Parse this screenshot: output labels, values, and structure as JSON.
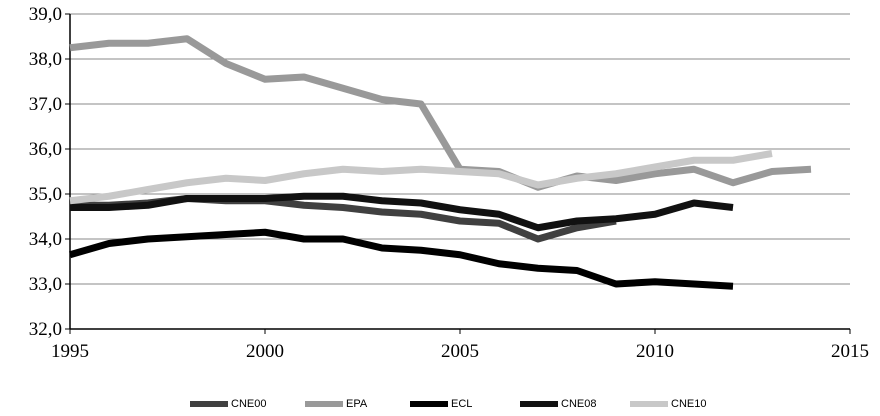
{
  "chart_data": {
    "type": "line",
    "xlim": [
      1995,
      2015
    ],
    "xticks": [
      1995,
      2000,
      2005,
      2010,
      2015
    ],
    "ylim": [
      32,
      39
    ],
    "yticks": [
      {
        "value": 32,
        "label": "32,0"
      },
      {
        "value": 33,
        "label": "33,0"
      },
      {
        "value": 34,
        "label": "34,0"
      },
      {
        "value": 35,
        "label": "35,0"
      },
      {
        "value": 36,
        "label": "36,0"
      },
      {
        "value": 37,
        "label": "37,0"
      },
      {
        "value": 38,
        "label": "38,0"
      },
      {
        "value": 39,
        "label": "39,0"
      }
    ],
    "grid": true,
    "legend": "bottom",
    "series": [
      {
        "name": "CNE00",
        "color": "#404040",
        "x": [
          1995,
          1996,
          1997,
          1998,
          1999,
          2000,
          2001,
          2002,
          2003,
          2004,
          2005,
          2006,
          2007,
          2008,
          2009
        ],
        "values": [
          34.75,
          34.75,
          34.8,
          34.9,
          34.85,
          34.85,
          34.75,
          34.7,
          34.6,
          34.55,
          34.4,
          34.35,
          34.0,
          34.25,
          34.4
        ]
      },
      {
        "name": "EPA",
        "color": "#999999",
        "x": [
          1995,
          1996,
          1997,
          1998,
          1999,
          2000,
          2001,
          2002,
          2003,
          2004,
          2005,
          2006,
          2007,
          2008,
          2009,
          2010,
          2011,
          2012,
          2013,
          2014
        ],
        "values": [
          38.25,
          38.35,
          38.35,
          38.45,
          37.9,
          37.55,
          37.6,
          37.35,
          37.1,
          37.0,
          35.55,
          35.5,
          35.15,
          35.4,
          35.3,
          35.45,
          35.55,
          35.25,
          35.5,
          35.55
        ]
      },
      {
        "name": "ECL",
        "color": "#000000",
        "x": [
          1995,
          1996,
          1997,
          1998,
          1999,
          2000,
          2001,
          2002,
          2003,
          2004,
          2005,
          2006,
          2007,
          2008,
          2009,
          2010,
          2011,
          2012
        ],
        "values": [
          33.65,
          33.9,
          34.0,
          34.05,
          34.1,
          34.15,
          34.0,
          34.0,
          33.8,
          33.75,
          33.65,
          33.45,
          33.35,
          33.3,
          33.0,
          33.05,
          33.0,
          32.95
        ]
      },
      {
        "name": "CNE08",
        "color": "#111111",
        "x": [
          1995,
          1996,
          1997,
          1998,
          1999,
          2000,
          2001,
          2002,
          2003,
          2004,
          2005,
          2006,
          2007,
          2008,
          2009,
          2010,
          2011,
          2012
        ],
        "values": [
          34.7,
          34.7,
          34.75,
          34.9,
          34.9,
          34.9,
          34.95,
          34.95,
          34.85,
          34.8,
          34.65,
          34.55,
          34.25,
          34.4,
          34.45,
          34.55,
          34.8,
          34.7
        ]
      },
      {
        "name": "CNE10",
        "color": "#c8c8c8",
        "x": [
          1995,
          1996,
          1997,
          1998,
          1999,
          2000,
          2001,
          2002,
          2003,
          2004,
          2005,
          2006,
          2007,
          2008,
          2009,
          2010,
          2011,
          2012,
          2013
        ],
        "values": [
          34.85,
          34.95,
          35.1,
          35.25,
          35.35,
          35.3,
          35.45,
          35.55,
          35.5,
          35.55,
          35.5,
          35.45,
          35.2,
          35.35,
          35.45,
          35.6,
          35.75,
          35.75,
          35.9
        ]
      }
    ]
  }
}
